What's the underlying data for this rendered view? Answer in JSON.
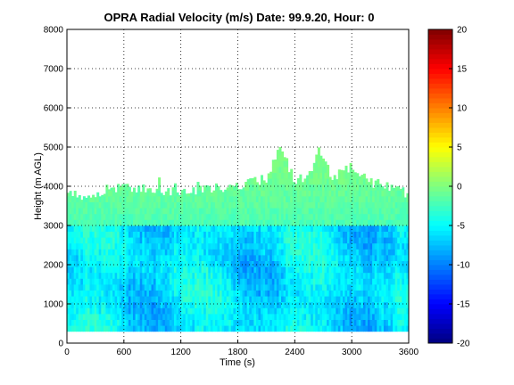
{
  "chart_data": {
    "type": "heatmap",
    "title": "OPRA Radial Velocity (m/s)  Date: 99.9.20, Hour: 0",
    "xlabel": "Time (s)",
    "ylabel": "Height (m AGL)",
    "xlim": [
      0,
      3600
    ],
    "ylim": [
      0,
      8000
    ],
    "xticks": [
      0,
      600,
      1200,
      1800,
      2400,
      3000,
      3600
    ],
    "yticks": [
      0,
      1000,
      2000,
      3000,
      4000,
      5000,
      6000,
      7000,
      8000
    ],
    "grid": true,
    "colormap": "jet",
    "clim": [
      -20,
      20
    ],
    "colorbar_ticks": [
      -20,
      -15,
      -10,
      -5,
      0,
      5,
      10,
      15,
      20
    ],
    "data_height_range": [
      300,
      5000
    ],
    "typical_values": {
      "below_3000m": [
        -9,
        -3
      ],
      "3000_to_4000m": [
        -3,
        0
      ],
      "plumes_above_4000m": [
        -2,
        0
      ]
    },
    "max_data_height_by_time": {
      "time": [
        0,
        300,
        600,
        900,
        1200,
        1500,
        1800,
        2100,
        2250,
        2400,
        2550,
        2650,
        2800,
        3000,
        3200,
        3400,
        3600
      ],
      "height": [
        3800,
        3700,
        4000,
        3900,
        3850,
        3950,
        4000,
        4200,
        5000,
        4100,
        4300,
        5000,
        4200,
        4500,
        4100,
        4000,
        3800
      ]
    }
  }
}
